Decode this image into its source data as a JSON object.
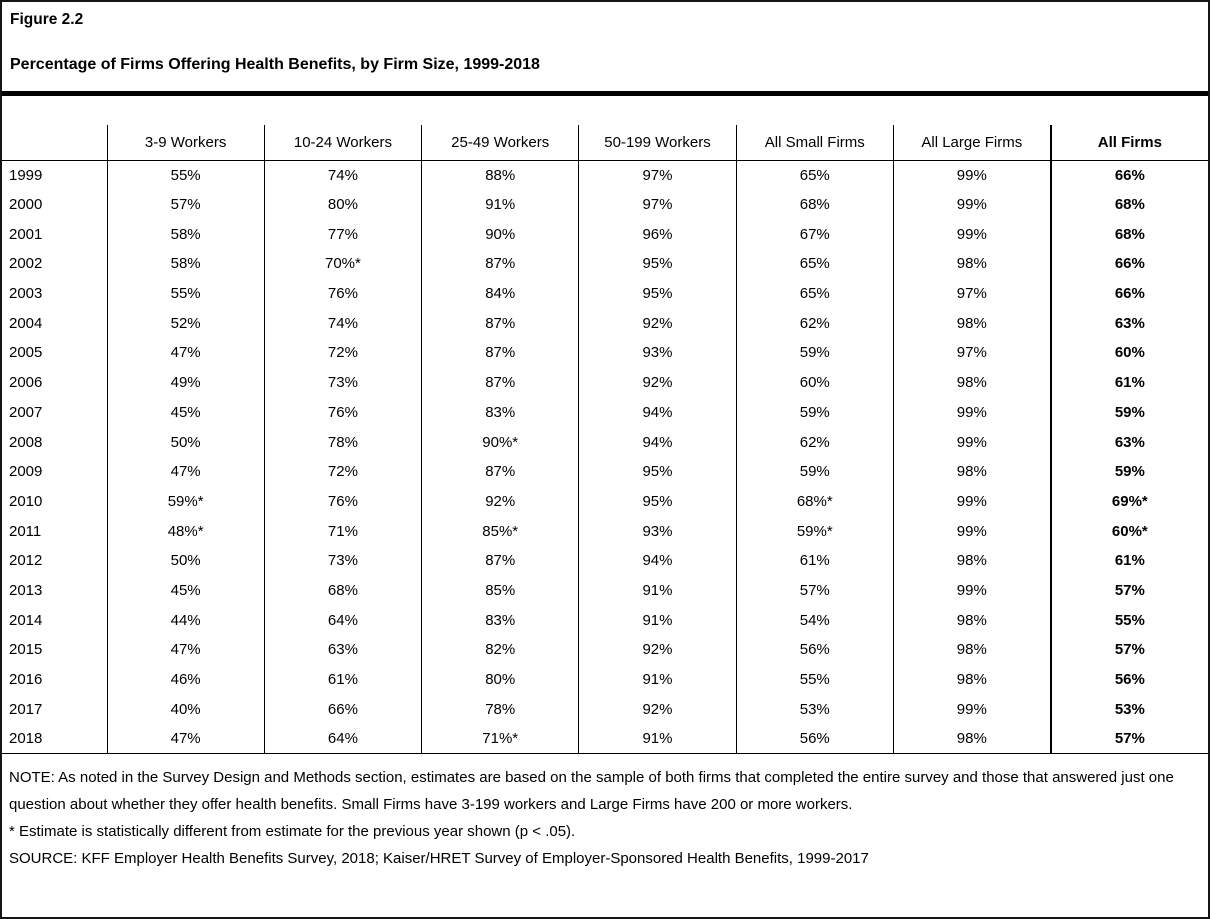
{
  "figure": {
    "label": "Figure 2.2"
  },
  "chart_data": {
    "type": "table",
    "title": "Percentage of Firms Offering Health Benefits, by Firm Size, 1999-2018",
    "row_header_label": "",
    "columns": [
      "3-9 Workers",
      "10-24 Workers",
      "25-49 Workers",
      "50-199 Workers",
      "All Small Firms",
      "All Large Firms",
      "All Firms"
    ],
    "years": [
      "1999",
      "2000",
      "2001",
      "2002",
      "2003",
      "2004",
      "2005",
      "2006",
      "2007",
      "2008",
      "2009",
      "2010",
      "2011",
      "2012",
      "2013",
      "2014",
      "2015",
      "2016",
      "2017",
      "2018"
    ],
    "rows": [
      [
        "55%",
        "74%",
        "88%",
        "97%",
        "65%",
        "99%",
        "66%"
      ],
      [
        "57%",
        "80%",
        "91%",
        "97%",
        "68%",
        "99%",
        "68%"
      ],
      [
        "58%",
        "77%",
        "90%",
        "96%",
        "67%",
        "99%",
        "68%"
      ],
      [
        "58%",
        "70%*",
        "87%",
        "95%",
        "65%",
        "98%",
        "66%"
      ],
      [
        "55%",
        "76%",
        "84%",
        "95%",
        "65%",
        "97%",
        "66%"
      ],
      [
        "52%",
        "74%",
        "87%",
        "92%",
        "62%",
        "98%",
        "63%"
      ],
      [
        "47%",
        "72%",
        "87%",
        "93%",
        "59%",
        "97%",
        "60%"
      ],
      [
        "49%",
        "73%",
        "87%",
        "92%",
        "60%",
        "98%",
        "61%"
      ],
      [
        "45%",
        "76%",
        "83%",
        "94%",
        "59%",
        "99%",
        "59%"
      ],
      [
        "50%",
        "78%",
        "90%*",
        "94%",
        "62%",
        "99%",
        "63%"
      ],
      [
        "47%",
        "72%",
        "87%",
        "95%",
        "59%",
        "98%",
        "59%"
      ],
      [
        "59%*",
        "76%",
        "92%",
        "95%",
        "68%*",
        "99%",
        "69%*"
      ],
      [
        "48%*",
        "71%",
        "85%*",
        "93%",
        "59%*",
        "99%",
        "60%*"
      ],
      [
        "50%",
        "73%",
        "87%",
        "94%",
        "61%",
        "98%",
        "61%"
      ],
      [
        "45%",
        "68%",
        "85%",
        "91%",
        "57%",
        "99%",
        "57%"
      ],
      [
        "44%",
        "64%",
        "83%",
        "91%",
        "54%",
        "98%",
        "55%"
      ],
      [
        "47%",
        "63%",
        "82%",
        "92%",
        "56%",
        "98%",
        "57%"
      ],
      [
        "46%",
        "61%",
        "80%",
        "91%",
        "55%",
        "98%",
        "56%"
      ],
      [
        "40%",
        "66%",
        "78%",
        "92%",
        "53%",
        "99%",
        "53%"
      ],
      [
        "47%",
        "64%",
        "71%*",
        "91%",
        "56%",
        "98%",
        "57%"
      ]
    ]
  },
  "notes": {
    "note": "NOTE: As noted in the Survey Design and Methods section, estimates are based on the sample of both firms that completed the entire survey and those that answered just one question about whether they offer health benefits. Small Firms have 3-199 workers and Large Firms have 200 or more workers.",
    "asterisk": " * Estimate is statistically different from estimate for the previous year shown (p < .05).",
    "source": "SOURCE: KFF Employer Health Benefits Survey, 2018; Kaiser/HRET Survey of Employer-Sponsored Health Benefits, 1999-2017"
  }
}
